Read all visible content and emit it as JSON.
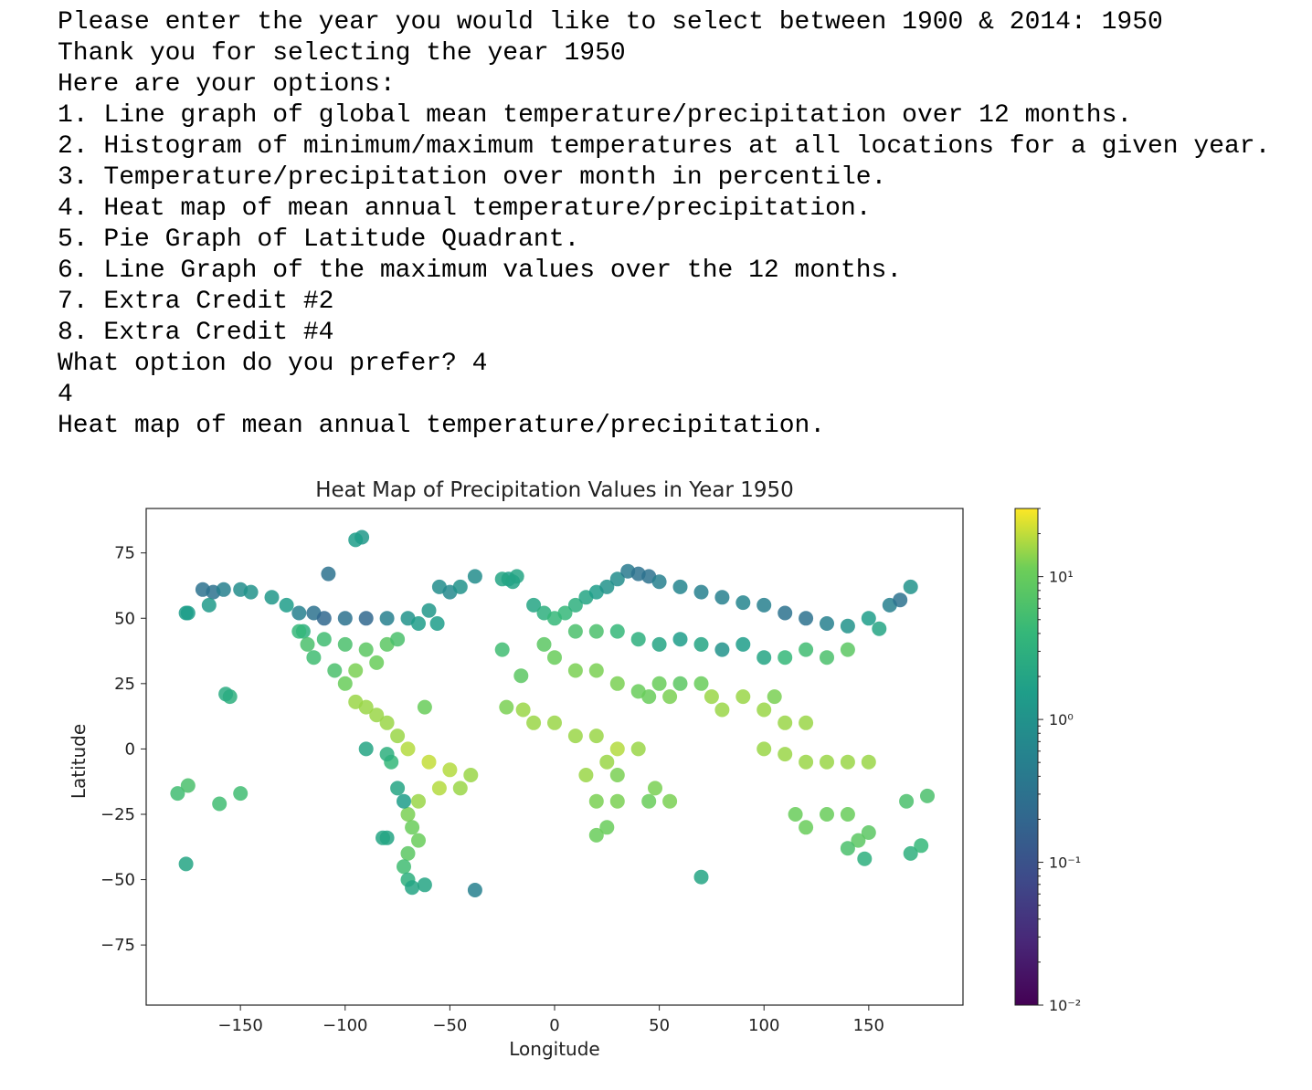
{
  "console": {
    "lines": [
      "Please enter the year you would like to select between 1900 & 2014: 1950",
      "Thank you for selecting the year 1950",
      "Here are your options:",
      "1. Line graph of global mean temperature/precipitation over 12 months.",
      "2. Histogram of minimum/maximum temperatures at all locations for a given year.",
      "3. Temperature/precipitation over month in percentile.",
      "4. Heat map of mean annual temperature/precipitation.",
      "5. Pie Graph of Latitude Quadrant.",
      "6. Line Graph of the maximum values over the 12 months.",
      "7. Extra Credit #2",
      "8. Extra Credit #4",
      "What option do you prefer? 4",
      "4",
      "Heat map of mean annual temperature/precipitation."
    ]
  },
  "chart_data": {
    "type": "scatter",
    "title": "Heat Map of Precipitation Values in Year 1950",
    "xlabel": "Longitude",
    "ylabel": "Latitude",
    "x_ticks": [
      -150,
      -100,
      -50,
      0,
      50,
      100,
      150
    ],
    "y_ticks": [
      75,
      50,
      25,
      0,
      -25,
      -50,
      -75
    ],
    "xlim": [
      -195,
      195
    ],
    "ylim": [
      -98,
      92
    ],
    "x_tick_labels": [
      "−150",
      "−100",
      "−50",
      "0",
      "50",
      "100",
      "150"
    ],
    "y_tick_labels": [
      "75",
      "50",
      "25",
      "0",
      "−25",
      "−50",
      "−75"
    ],
    "colormap": "viridis",
    "colorbar": {
      "scale": "log",
      "range": [
        0.01,
        30
      ],
      "tick_labels": [
        "10¹",
        "10⁰",
        "10⁻¹",
        "10⁻²"
      ],
      "tick_values": [
        10,
        1,
        0.1,
        0.01
      ]
    },
    "points": [
      [
        -168,
        61,
        0.3
      ],
      [
        -163,
        60,
        0.3
      ],
      [
        -158,
        61,
        0.5
      ],
      [
        -150,
        61,
        0.8
      ],
      [
        -145,
        60,
        1
      ],
      [
        -135,
        58,
        1.2
      ],
      [
        -128,
        55,
        1.5
      ],
      [
        -122,
        52,
        0.5
      ],
      [
        -115,
        52,
        0.3
      ],
      [
        -110,
        50,
        0.2
      ],
      [
        -100,
        50,
        0.3
      ],
      [
        -90,
        50,
        0.2
      ],
      [
        -80,
        50,
        0.5
      ],
      [
        -70,
        50,
        1
      ],
      [
        -65,
        48,
        1.5
      ],
      [
        -60,
        53,
        1.2
      ],
      [
        -56,
        48,
        1.5
      ],
      [
        -175,
        52,
        1.5
      ],
      [
        -165,
        55,
        1.3
      ],
      [
        -108,
        67,
        0.3
      ],
      [
        -92,
        81,
        1.2
      ],
      [
        -95,
        80,
        1.5
      ],
      [
        -55,
        62,
        0.8
      ],
      [
        -50,
        60,
        0.7
      ],
      [
        -45,
        62,
        1.0
      ],
      [
        -38,
        66,
        0.8
      ],
      [
        -22,
        65,
        1.5
      ],
      [
        -18,
        66,
        2
      ],
      [
        -20,
        64,
        1.8
      ],
      [
        -25,
        65,
        2
      ],
      [
        -120,
        45,
        3
      ],
      [
        -110,
        42,
        5
      ],
      [
        -100,
        40,
        6
      ],
      [
        -90,
        38,
        8
      ],
      [
        -80,
        40,
        8
      ],
      [
        -75,
        42,
        6
      ],
      [
        -85,
        33,
        10
      ],
      [
        -95,
        30,
        12
      ],
      [
        -105,
        30,
        6
      ],
      [
        -115,
        35,
        5
      ],
      [
        -118,
        40,
        6
      ],
      [
        -122,
        45,
        4
      ],
      [
        -100,
        25,
        10
      ],
      [
        -95,
        18,
        15
      ],
      [
        -90,
        16,
        15
      ],
      [
        -85,
        13,
        15
      ],
      [
        -80,
        10,
        15
      ],
      [
        -75,
        5,
        15
      ],
      [
        -70,
        0,
        18
      ],
      [
        -60,
        -5,
        20
      ],
      [
        -50,
        -8,
        18
      ],
      [
        -40,
        -10,
        15
      ],
      [
        -45,
        -15,
        15
      ],
      [
        -55,
        -15,
        18
      ],
      [
        -65,
        -20,
        15
      ],
      [
        -70,
        -25,
        12
      ],
      [
        -68,
        -30,
        10
      ],
      [
        -65,
        -35,
        10
      ],
      [
        -70,
        -40,
        8
      ],
      [
        -72,
        -45,
        5
      ],
      [
        -70,
        -50,
        3
      ],
      [
        -68,
        -53,
        2
      ],
      [
        -78,
        -5,
        4
      ],
      [
        -80,
        -2,
        3
      ],
      [
        -75,
        -15,
        2
      ],
      [
        -72,
        -20,
        1.5
      ],
      [
        -62,
        -52,
        2
      ],
      [
        -38,
        -54,
        0.5
      ],
      [
        -80,
        -34,
        2
      ],
      [
        -90,
        0,
        2
      ],
      [
        -155,
        20,
        3
      ],
      [
        -157,
        21,
        2.5
      ],
      [
        -180,
        -17,
        5
      ],
      [
        -175,
        -14,
        6
      ],
      [
        -160,
        -21,
        5
      ],
      [
        -150,
        -17,
        5
      ],
      [
        -176,
        -44,
        2
      ],
      [
        -176,
        52,
        1.5
      ],
      [
        -10,
        55,
        2
      ],
      [
        -5,
        52,
        3
      ],
      [
        0,
        50,
        4
      ],
      [
        5,
        52,
        4
      ],
      [
        10,
        55,
        3
      ],
      [
        15,
        58,
        2
      ],
      [
        20,
        60,
        1.5
      ],
      [
        25,
        62,
        1
      ],
      [
        30,
        65,
        0.8
      ],
      [
        35,
        68,
        0.4
      ],
      [
        40,
        67,
        0.3
      ],
      [
        45,
        66,
        0.3
      ],
      [
        50,
        64,
        0.5
      ],
      [
        60,
        62,
        0.6
      ],
      [
        70,
        60,
        0.5
      ],
      [
        80,
        58,
        0.5
      ],
      [
        90,
        56,
        0.6
      ],
      [
        100,
        55,
        0.5
      ],
      [
        110,
        52,
        0.3
      ],
      [
        120,
        50,
        0.3
      ],
      [
        130,
        48,
        0.5
      ],
      [
        140,
        47,
        1
      ],
      [
        150,
        50,
        1.5
      ],
      [
        160,
        55,
        0.5
      ],
      [
        165,
        57,
        0.3
      ],
      [
        170,
        62,
        1
      ],
      [
        155,
        46,
        2
      ],
      [
        10,
        45,
        6
      ],
      [
        20,
        45,
        6
      ],
      [
        30,
        45,
        4
      ],
      [
        40,
        42,
        3
      ],
      [
        50,
        40,
        2
      ],
      [
        60,
        42,
        1.5
      ],
      [
        70,
        40,
        2
      ],
      [
        80,
        38,
        1
      ],
      [
        90,
        40,
        1.5
      ],
      [
        100,
        35,
        2
      ],
      [
        110,
        35,
        4
      ],
      [
        120,
        38,
        5
      ],
      [
        130,
        35,
        6
      ],
      [
        140,
        38,
        8
      ],
      [
        -5,
        40,
        8
      ],
      [
        0,
        35,
        10
      ],
      [
        10,
        30,
        12
      ],
      [
        20,
        30,
        12
      ],
      [
        30,
        25,
        12
      ],
      [
        40,
        22,
        10
      ],
      [
        45,
        20,
        10
      ],
      [
        50,
        25,
        10
      ],
      [
        55,
        20,
        12
      ],
      [
        60,
        25,
        8
      ],
      [
        70,
        25,
        10
      ],
      [
        75,
        20,
        15
      ],
      [
        80,
        15,
        15
      ],
      [
        90,
        20,
        15
      ],
      [
        100,
        15,
        15
      ],
      [
        105,
        20,
        12
      ],
      [
        110,
        10,
        15
      ],
      [
        120,
        10,
        15
      ],
      [
        -15,
        15,
        15
      ],
      [
        -10,
        10,
        15
      ],
      [
        0,
        10,
        15
      ],
      [
        10,
        5,
        15
      ],
      [
        20,
        5,
        15
      ],
      [
        30,
        0,
        18
      ],
      [
        40,
        0,
        15
      ],
      [
        25,
        -5,
        15
      ],
      [
        15,
        -10,
        15
      ],
      [
        30,
        -10,
        12
      ],
      [
        20,
        -20,
        12
      ],
      [
        30,
        -20,
        12
      ],
      [
        25,
        -30,
        10
      ],
      [
        20,
        -33,
        10
      ],
      [
        45,
        -20,
        10
      ],
      [
        48,
        -15,
        12
      ],
      [
        100,
        0,
        15
      ],
      [
        110,
        -2,
        15
      ],
      [
        120,
        -5,
        15
      ],
      [
        130,
        -5,
        15
      ],
      [
        140,
        -5,
        15
      ],
      [
        150,
        -5,
        15
      ],
      [
        115,
        -25,
        10
      ],
      [
        120,
        -30,
        10
      ],
      [
        130,
        -25,
        10
      ],
      [
        140,
        -25,
        10
      ],
      [
        145,
        -35,
        8
      ],
      [
        140,
        -38,
        6
      ],
      [
        150,
        -32,
        8
      ],
      [
        148,
        -42,
        3
      ],
      [
        170,
        -40,
        3
      ],
      [
        175,
        -37,
        4
      ],
      [
        178,
        -18,
        6
      ],
      [
        168,
        -20,
        6
      ],
      [
        70,
        -49,
        2
      ],
      [
        55,
        -20,
        12
      ],
      [
        -23,
        16,
        12
      ],
      [
        -25,
        38,
        5
      ],
      [
        -16,
        28,
        8
      ],
      [
        -62,
        16,
        10
      ],
      [
        -82,
        -34,
        2
      ]
    ]
  },
  "colors": {
    "axes_edge": "#222222",
    "text": "#222222"
  }
}
